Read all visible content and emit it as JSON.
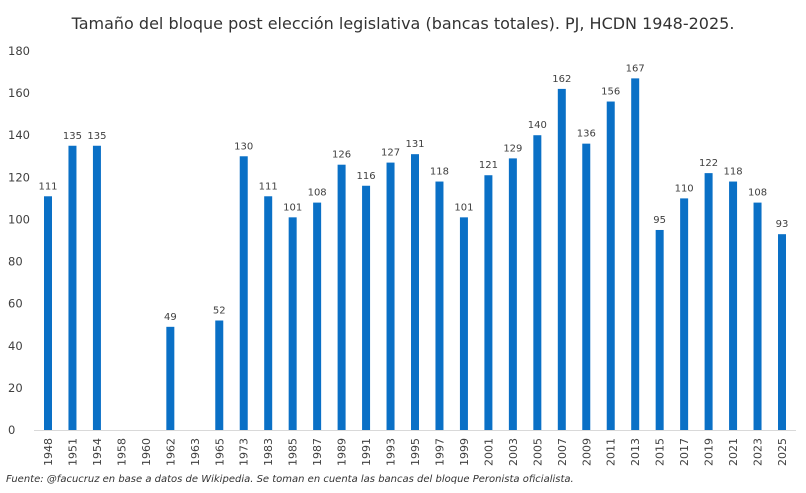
{
  "chart_data": {
    "type": "bar",
    "title": "Tamaño del bloque post elección legislativa (bancas totales). PJ, HCDN 1948-2025.",
    "xlabel": "",
    "ylabel": "",
    "ylim": [
      0,
      180
    ],
    "yticks": [
      0,
      20,
      40,
      60,
      80,
      100,
      120,
      140,
      160,
      180
    ],
    "grid": false,
    "color": "#0a70c6",
    "categories": [
      "1948",
      "1951",
      "1954",
      "1958",
      "1960",
      "1962",
      "1963",
      "1965",
      "1973",
      "1983",
      "1985",
      "1987",
      "1989",
      "1991",
      "1993",
      "1995",
      "1997",
      "1999",
      "2001",
      "2003",
      "2005",
      "2007",
      "2009",
      "2011",
      "2013",
      "2015",
      "2017",
      "2019",
      "2021",
      "2023",
      "2025"
    ],
    "values": [
      111,
      135,
      135,
      null,
      null,
      49,
      null,
      52,
      130,
      111,
      101,
      108,
      126,
      116,
      127,
      131,
      118,
      101,
      121,
      129,
      140,
      162,
      136,
      156,
      167,
      95,
      110,
      122,
      118,
      108,
      93
    ]
  },
  "footer": "Fuente: @facucruz en base a datos de Wikipedia. Se toman en cuenta las bancas del bloque Peronista oficialista."
}
